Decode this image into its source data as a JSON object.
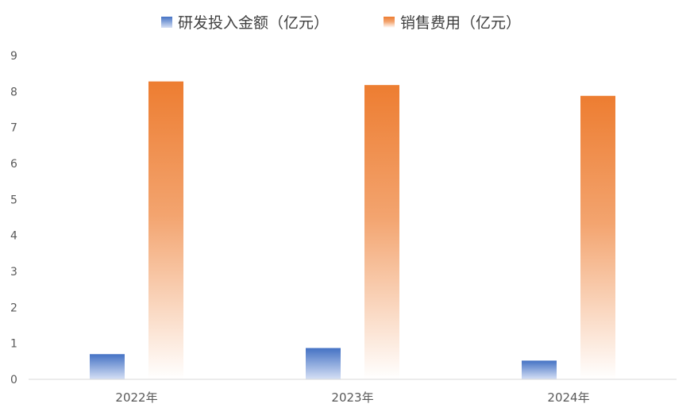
{
  "chart_data": {
    "type": "bar",
    "categories": [
      "2022年",
      "2023年",
      "2024年"
    ],
    "series": [
      {
        "name": "研发投入金额（亿元）",
        "values": [
          0.7,
          0.87,
          0.52
        ],
        "color_top": "#4472C4",
        "color_bottom": "#D6E0F5"
      },
      {
        "name": "销售费用（亿元）",
        "values": [
          8.28,
          8.18,
          7.88
        ],
        "color_top": "#ED7D31",
        "color_bottom": "#FFFFFF"
      }
    ],
    "ylim": [
      0,
      9
    ],
    "yticks": [
      "0",
      "1",
      "2",
      "3",
      "4",
      "5",
      "6",
      "7",
      "8",
      "9"
    ],
    "legend_position": "top",
    "grid": false
  }
}
